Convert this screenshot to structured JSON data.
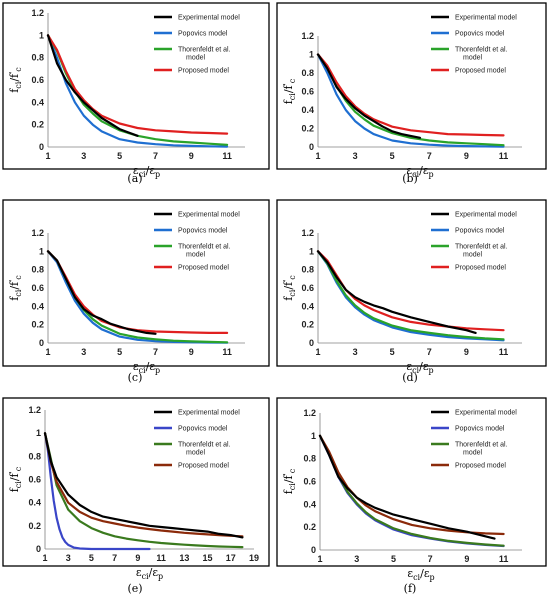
{
  "figure": {
    "legend_labels": {
      "experimental": "Experimental model",
      "popovics": "Popovics model",
      "thorenfeldt_line1": "Thorenfeldt et al.",
      "thorenfeldt_line2": "model",
      "proposed": "Proposed model"
    },
    "y_label": {
      "base1": "f",
      "sub1": "ci",
      "mid": "/f",
      "prime": "'",
      "sub2": "c"
    },
    "x_label": {
      "base1": "ε",
      "sub1": "ci",
      "mid": "/ε",
      "sub2": "p"
    }
  },
  "colors": {
    "experimental": "#000000",
    "popovics": "#1f6fd1",
    "thorenfeldt": "#2aa32a",
    "proposed": "#e02020",
    "proposed_ef": "#8b2a0a",
    "popovics_ef": "#3a46c8",
    "thorenfeldt_ef": "#3a7a1e"
  },
  "chart_data": [
    {
      "id": "a",
      "caption": "(a)",
      "type": "line",
      "xlim": [
        1,
        12
      ],
      "ylim": [
        0,
        1.2
      ],
      "xticks": [
        "1",
        "3",
        "5",
        "7",
        "9",
        "11"
      ],
      "yticks": [
        "0",
        "0.2",
        "0.4",
        "0.6",
        "0.8",
        "1",
        "1.2"
      ],
      "series": [
        {
          "name": "Popovics model",
          "x": [
            1,
            1.5,
            2,
            2.5,
            3,
            3.5,
            4,
            5,
            6,
            7,
            8,
            9,
            10,
            11
          ],
          "y": [
            1,
            0.8,
            0.57,
            0.4,
            0.28,
            0.2,
            0.14,
            0.07,
            0.04,
            0.025,
            0.015,
            0.01,
            0.006,
            0.004
          ]
        },
        {
          "name": "Thorenfeldt et al. model",
          "x": [
            1,
            1.5,
            2,
            2.5,
            3,
            3.5,
            4,
            5,
            6,
            7,
            8,
            9,
            10,
            11
          ],
          "y": [
            1,
            0.86,
            0.66,
            0.5,
            0.38,
            0.3,
            0.23,
            0.15,
            0.1,
            0.07,
            0.05,
            0.04,
            0.03,
            0.02
          ]
        },
        {
          "name": "Proposed model",
          "x": [
            1,
            1.5,
            2,
            2.5,
            3,
            3.5,
            4,
            5,
            6,
            7,
            8,
            9,
            10,
            11
          ],
          "y": [
            1,
            0.87,
            0.68,
            0.52,
            0.42,
            0.34,
            0.28,
            0.21,
            0.17,
            0.15,
            0.14,
            0.13,
            0.125,
            0.12
          ]
        },
        {
          "name": "Experimental model",
          "x": [
            1,
            1.5,
            2,
            2.5,
            3,
            3.5,
            4,
            4.5,
            5,
            5.5,
            6
          ],
          "y": [
            1,
            0.75,
            0.6,
            0.49,
            0.4,
            0.33,
            0.26,
            0.21,
            0.16,
            0.13,
            0.1
          ]
        }
      ]
    },
    {
      "id": "b",
      "caption": "(b)",
      "type": "line",
      "xlim": [
        1,
        12
      ],
      "ylim": [
        0,
        1.2
      ],
      "xticks": [
        "1",
        "3",
        "5",
        "7",
        "9",
        "11"
      ],
      "yticks": [
        "0",
        "0.2",
        "0.4",
        "0.6",
        "0.8",
        "1",
        "1.2"
      ],
      "series": [
        {
          "name": "Popovics model",
          "x": [
            1,
            1.5,
            2,
            2.5,
            3,
            3.5,
            4,
            5,
            6,
            7,
            8,
            9,
            10,
            11
          ],
          "y": [
            1,
            0.8,
            0.57,
            0.4,
            0.28,
            0.2,
            0.14,
            0.07,
            0.04,
            0.025,
            0.015,
            0.01,
            0.006,
            0.004
          ]
        },
        {
          "name": "Thorenfeldt et al. model",
          "x": [
            1,
            1.5,
            2,
            2.5,
            3,
            3.5,
            4,
            5,
            6,
            7,
            8,
            9,
            10,
            11
          ],
          "y": [
            1,
            0.86,
            0.66,
            0.5,
            0.38,
            0.3,
            0.23,
            0.15,
            0.1,
            0.07,
            0.05,
            0.04,
            0.03,
            0.02
          ]
        },
        {
          "name": "Proposed model",
          "x": [
            1,
            1.5,
            2,
            2.5,
            3,
            3.5,
            4,
            5,
            6,
            7,
            8,
            9,
            10,
            11
          ],
          "y": [
            1,
            0.88,
            0.7,
            0.55,
            0.44,
            0.36,
            0.3,
            0.22,
            0.18,
            0.16,
            0.14,
            0.135,
            0.13,
            0.125
          ]
        },
        {
          "name": "Experimental model",
          "x": [
            1,
            1.5,
            2,
            2.5,
            3,
            3.5,
            4,
            4.5,
            5,
            5.5,
            6,
            6.5
          ],
          "y": [
            1,
            0.85,
            0.65,
            0.52,
            0.42,
            0.34,
            0.28,
            0.22,
            0.17,
            0.14,
            0.12,
            0.1
          ]
        }
      ]
    },
    {
      "id": "c",
      "caption": "(c)",
      "type": "line",
      "xlim": [
        1,
        12
      ],
      "ylim": [
        0,
        1.2
      ],
      "xticks": [
        "1",
        "3",
        "5",
        "7",
        "9",
        "11"
      ],
      "yticks": [
        "0",
        "0.2",
        "0.4",
        "0.6",
        "0.8",
        "1",
        "1.2"
      ],
      "series": [
        {
          "name": "Popovics model",
          "x": [
            1,
            1.5,
            2,
            2.5,
            3,
            3.5,
            4,
            5,
            6,
            7,
            8,
            9,
            10,
            11
          ],
          "y": [
            1,
            0.88,
            0.66,
            0.46,
            0.32,
            0.22,
            0.15,
            0.07,
            0.035,
            0.02,
            0.012,
            0.008,
            0.005,
            0.003
          ]
        },
        {
          "name": "Thorenfeldt et al. model",
          "x": [
            1,
            1.5,
            2,
            2.5,
            3,
            3.5,
            4,
            5,
            6,
            7,
            8,
            9,
            10,
            11
          ],
          "y": [
            1,
            0.9,
            0.7,
            0.5,
            0.36,
            0.26,
            0.19,
            0.1,
            0.06,
            0.04,
            0.025,
            0.018,
            0.012,
            0.008
          ]
        },
        {
          "name": "Proposed model",
          "x": [
            1,
            1.5,
            2,
            2.5,
            3,
            3.5,
            4,
            5,
            6,
            7,
            8,
            9,
            10,
            11
          ],
          "y": [
            1,
            0.9,
            0.72,
            0.53,
            0.4,
            0.31,
            0.24,
            0.17,
            0.14,
            0.125,
            0.12,
            0.115,
            0.11,
            0.11
          ]
        },
        {
          "name": "Experimental model",
          "x": [
            1,
            1.5,
            2,
            2.5,
            3,
            3.5,
            4,
            4.5,
            5,
            5.5,
            6,
            6.5,
            7
          ],
          "y": [
            1,
            0.9,
            0.7,
            0.5,
            0.37,
            0.3,
            0.26,
            0.21,
            0.18,
            0.15,
            0.13,
            0.11,
            0.1
          ]
        }
      ]
    },
    {
      "id": "d",
      "caption": "(d)",
      "type": "line",
      "xlim": [
        1,
        12
      ],
      "ylim": [
        0,
        1.2
      ],
      "xticks": [
        "1",
        "3",
        "5",
        "7",
        "9",
        "11"
      ],
      "yticks": [
        "0",
        "0.2",
        "0.4",
        "0.6",
        "0.8",
        "1",
        "1.2"
      ],
      "series": [
        {
          "name": "Popovics model",
          "x": [
            1,
            1.5,
            2,
            2.5,
            3,
            3.5,
            4,
            5,
            6,
            7,
            8,
            9,
            10,
            11
          ],
          "y": [
            1,
            0.86,
            0.66,
            0.5,
            0.39,
            0.31,
            0.25,
            0.17,
            0.12,
            0.09,
            0.065,
            0.05,
            0.04,
            0.03
          ]
        },
        {
          "name": "Thorenfeldt et al. model",
          "x": [
            1,
            1.5,
            2,
            2.5,
            3,
            3.5,
            4,
            5,
            6,
            7,
            8,
            9,
            10,
            11
          ],
          "y": [
            1,
            0.87,
            0.68,
            0.52,
            0.41,
            0.33,
            0.27,
            0.19,
            0.14,
            0.11,
            0.085,
            0.065,
            0.05,
            0.04
          ]
        },
        {
          "name": "Proposed model",
          "x": [
            1,
            1.5,
            2,
            2.5,
            3,
            3.5,
            4,
            5,
            6,
            7,
            8,
            9,
            10,
            11
          ],
          "y": [
            1,
            0.9,
            0.74,
            0.58,
            0.48,
            0.41,
            0.36,
            0.28,
            0.23,
            0.2,
            0.18,
            0.16,
            0.15,
            0.14
          ]
        },
        {
          "name": "Experimental model",
          "x": [
            1,
            1.5,
            2,
            2.5,
            3,
            3.5,
            4,
            4.5,
            5,
            5.5,
            6,
            7,
            8,
            9,
            9.5
          ],
          "y": [
            1,
            0.88,
            0.72,
            0.58,
            0.5,
            0.45,
            0.41,
            0.38,
            0.34,
            0.31,
            0.28,
            0.23,
            0.18,
            0.14,
            0.11
          ]
        }
      ]
    },
    {
      "id": "e",
      "caption": "(e)",
      "type": "line",
      "xlim": [
        1,
        19
      ],
      "ylim": [
        0,
        1.2
      ],
      "xticks": [
        "1",
        "3",
        "5",
        "7",
        "9",
        "11",
        "13",
        "15",
        "17",
        "19"
      ],
      "yticks": [
        "0",
        "0.2",
        "0.4",
        "0.6",
        "0.8",
        "1",
        "1.2"
      ],
      "series": [
        {
          "name": "Popovics model",
          "x": [
            1,
            1.25,
            1.5,
            1.75,
            2,
            2.25,
            2.5,
            2.75,
            3,
            3.5,
            4,
            5,
            6,
            8,
            10
          ],
          "y": [
            1,
            0.85,
            0.62,
            0.42,
            0.27,
            0.17,
            0.1,
            0.06,
            0.035,
            0.012,
            0.004,
            0,
            0,
            0,
            0
          ]
        },
        {
          "name": "Thorenfeldt et al. model",
          "x": [
            1,
            1.5,
            2,
            3,
            4,
            5,
            6,
            7,
            8,
            9,
            10,
            11,
            12,
            13,
            14,
            15,
            16,
            17,
            18
          ],
          "y": [
            1,
            0.78,
            0.55,
            0.34,
            0.24,
            0.18,
            0.14,
            0.11,
            0.09,
            0.075,
            0.062,
            0.052,
            0.044,
            0.037,
            0.031,
            0.026,
            0.022,
            0.019,
            0.016
          ]
        },
        {
          "name": "Proposed model",
          "x": [
            1,
            1.5,
            2,
            3,
            4,
            5,
            6,
            7,
            8,
            9,
            10,
            11,
            12,
            13,
            14,
            15,
            16,
            17,
            18
          ],
          "y": [
            1,
            0.75,
            0.58,
            0.4,
            0.32,
            0.27,
            0.24,
            0.22,
            0.2,
            0.185,
            0.172,
            0.16,
            0.15,
            0.14,
            0.133,
            0.126,
            0.12,
            0.114,
            0.11
          ]
        },
        {
          "name": "Experimental model",
          "x": [
            1,
            1.5,
            2,
            3,
            4,
            5,
            6,
            7,
            8,
            9,
            10,
            11,
            12,
            13,
            14,
            15,
            16,
            17,
            18
          ],
          "y": [
            1,
            0.76,
            0.62,
            0.47,
            0.38,
            0.32,
            0.28,
            0.26,
            0.24,
            0.22,
            0.2,
            0.19,
            0.18,
            0.17,
            0.16,
            0.15,
            0.13,
            0.12,
            0.1
          ]
        }
      ]
    },
    {
      "id": "f",
      "caption": "(f)",
      "type": "line",
      "xlim": [
        1,
        12
      ],
      "ylim": [
        0,
        1.2
      ],
      "xticks": [
        "1",
        "3",
        "5",
        "7",
        "9",
        "11"
      ],
      "yticks": [
        "0",
        "0.2",
        "0.4",
        "0.6",
        "0.8",
        "1",
        "1.2"
      ],
      "series": [
        {
          "name": "Popovics model",
          "x": [
            1,
            1.5,
            2,
            2.5,
            3,
            3.5,
            4,
            5,
            6,
            7,
            8,
            9,
            10,
            11
          ],
          "y": [
            1,
            0.83,
            0.64,
            0.5,
            0.4,
            0.32,
            0.26,
            0.18,
            0.13,
            0.1,
            0.075,
            0.058,
            0.045,
            0.035
          ]
        },
        {
          "name": "Thorenfeldt et al. model",
          "x": [
            1,
            1.5,
            2,
            2.5,
            3,
            3.5,
            4,
            5,
            6,
            7,
            8,
            9,
            10,
            11
          ],
          "y": [
            1,
            0.84,
            0.65,
            0.51,
            0.41,
            0.33,
            0.27,
            0.19,
            0.14,
            0.105,
            0.08,
            0.062,
            0.048,
            0.038
          ]
        },
        {
          "name": "Proposed model",
          "x": [
            1,
            1.5,
            2,
            2.5,
            3,
            3.5,
            4,
            5,
            6,
            7,
            8,
            9,
            10,
            11
          ],
          "y": [
            1,
            0.86,
            0.68,
            0.55,
            0.46,
            0.39,
            0.34,
            0.27,
            0.22,
            0.19,
            0.17,
            0.155,
            0.145,
            0.14
          ]
        },
        {
          "name": "Experimental model",
          "x": [
            1,
            1.5,
            2,
            2.5,
            3,
            3.5,
            4,
            5,
            6,
            7,
            8,
            9,
            10,
            10.5
          ],
          "y": [
            1,
            0.83,
            0.64,
            0.54,
            0.46,
            0.41,
            0.37,
            0.31,
            0.27,
            0.23,
            0.19,
            0.16,
            0.12,
            0.1
          ]
        }
      ]
    }
  ]
}
